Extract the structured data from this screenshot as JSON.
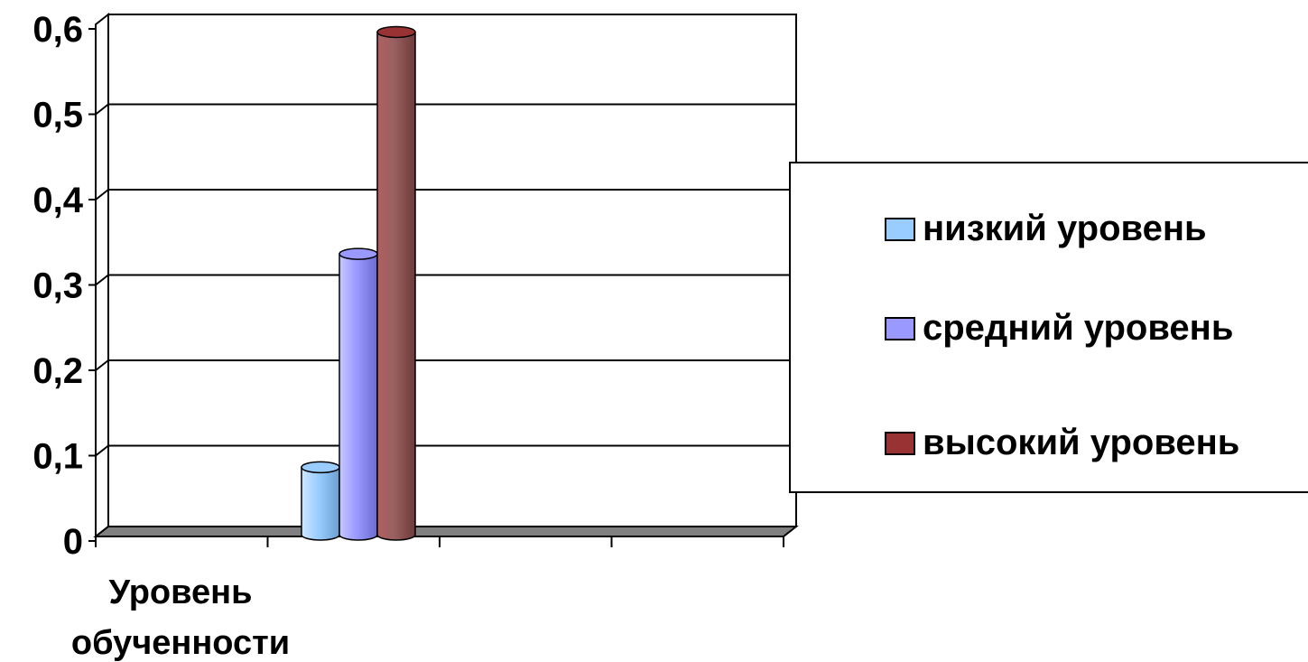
{
  "chart_data": {
    "type": "bar",
    "categories": [
      "Уровень обученности"
    ],
    "category_label_lines": [
      "Уровень",
      "обученности"
    ],
    "series": [
      {
        "name": "низкий уровень",
        "values": [
          0.08
        ],
        "color": "#99ccff"
      },
      {
        "name": "средний уровень",
        "values": [
          0.33
        ],
        "color": "#9999ff"
      },
      {
        "name": "высокий уровень",
        "values": [
          0.59
        ],
        "color": "#993333"
      }
    ],
    "ylim": [
      0,
      0.6
    ],
    "yticks": [
      "0",
      "0,1",
      "0,2",
      "0,3",
      "0,4",
      "0,5",
      "0,6"
    ],
    "grid": true,
    "legend_position": "right",
    "style": "3d cylinder"
  }
}
